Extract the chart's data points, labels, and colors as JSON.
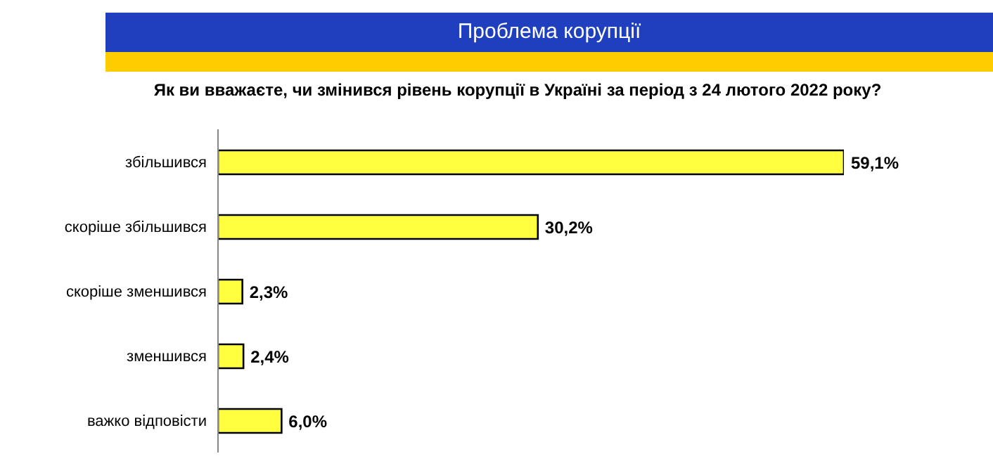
{
  "chart_data": {
    "type": "bar",
    "orientation": "horizontal",
    "title": "Проблема корупції",
    "subtitle": "Як ви вважаєте, чи змінився рівень корупції в Україні за період з 24 лютого 2022 року?",
    "categories": [
      "збільшився",
      "скоріше збільшився",
      "скоріше зменшився",
      "зменшився",
      "важко відповісти"
    ],
    "values": [
      59.1,
      30.2,
      2.3,
      2.4,
      6.0
    ],
    "value_labels": [
      "59,1%",
      "30,2%",
      "2,3%",
      "2,4%",
      "6,0%"
    ],
    "color": "#ffff40",
    "tick_labels": "y"
  }
}
